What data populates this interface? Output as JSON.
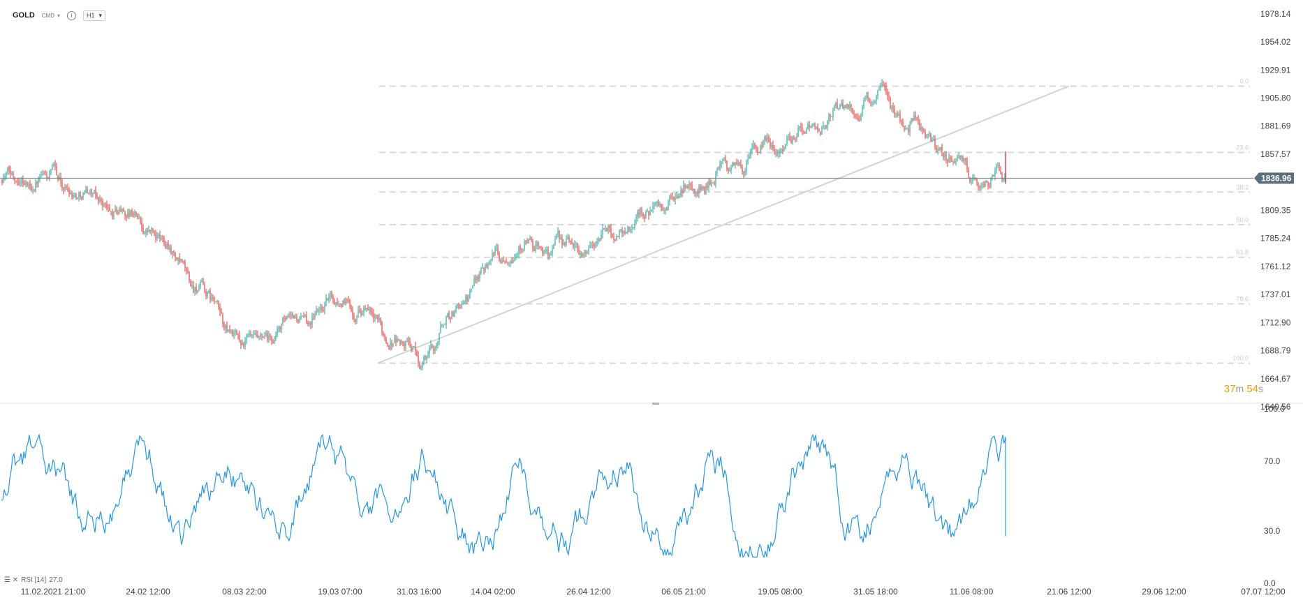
{
  "header": {
    "symbol": "GOLD",
    "venue": "CMD",
    "info_glyph": "i",
    "timeframe": "H1",
    "caret_glyph": "▾"
  },
  "timer": {
    "minutes": "37",
    "minutes_unit": "m",
    "seconds": "54",
    "seconds_unit": "s"
  },
  "rsi_legend": {
    "icons": "☰ ✕",
    "label": "RSI [14]",
    "value": "27.0"
  },
  "colors": {
    "up": "#26a69a",
    "down": "#e53935",
    "rsi": "#2196f3",
    "price_line": "#6b7b8c",
    "price_badge": "#5f6e7d",
    "fib": "#d6d9de",
    "trend": "#cfd4d8",
    "timer": "#f0a000"
  },
  "chart_data": [
    {
      "type": "candlestick",
      "title": "",
      "timeframe": "H1",
      "ylim": [
        1640.56,
        1990
      ],
      "yticks": [
        1978.14,
        1954.02,
        1929.91,
        1905.8,
        1881.69,
        1857.57,
        1809.35,
        1785.24,
        1761.12,
        1737.01,
        1712.9,
        1688.79,
        1664.67,
        1640.56
      ],
      "ytick_labels": [
        "1978.14",
        "1954.02",
        "1929.91",
        "1905.80",
        "1881.69",
        "1857.57",
        "1809.35",
        "1785.24",
        "1761.12",
        "1737.01",
        "1712.90",
        "1688.79",
        "1664.67",
        "1640.56"
      ],
      "last_price": 1836.96,
      "last_price_label": "1836.96",
      "xticks": [
        "11.02.2021 21:00",
        "24.02 12:00",
        "08.03 22:00",
        "19.03 07:00",
        "31.03 16:00",
        "14.04 02:00",
        "26.04 12:00",
        "06.05 21:00",
        "19.05 08:00",
        "31.05 18:00",
        "11.06 08:00",
        "21.06 12:00",
        "29.06 12:00",
        "07.07 12:00"
      ],
      "anchor_points": [
        {
          "x": "11.02.2021 21:00",
          "y": 1836
        },
        {
          "x": "24.02 12:00",
          "y": 1795
        },
        {
          "x": "08.03 22:00",
          "y": 1690
        },
        {
          "x": "19.03 07:00",
          "y": 1735
        },
        {
          "x": "31.03 16:00",
          "y": 1680
        },
        {
          "x": "14.04 02:00",
          "y": 1775
        },
        {
          "x": "26.04 12:00",
          "y": 1780
        },
        {
          "x": "06.05 21:00",
          "y": 1825
        },
        {
          "x": "19.05 08:00",
          "y": 1870
        },
        {
          "x": "31.05 18:00",
          "y": 1908
        },
        {
          "x": "11.06 08:00",
          "y": 1837
        }
      ],
      "fibonacci": [
        {
          "label": "0.0",
          "price": 1916
        },
        {
          "label": "23.6",
          "price": 1859
        },
        {
          "label": "38.2",
          "price": 1825
        },
        {
          "label": "50.0",
          "price": 1797
        },
        {
          "label": "61.8",
          "price": 1769
        },
        {
          "label": "78.6",
          "price": 1729
        },
        {
          "label": "100.0",
          "price": 1678
        }
      ],
      "trendline": [
        {
          "x": "31.03 16:00",
          "y": 1678
        },
        {
          "x": "21.06 12:00",
          "y": 1916
        }
      ]
    },
    {
      "type": "line",
      "name": "RSI [14]",
      "ylim": [
        0,
        100
      ],
      "yticks": [
        100.0,
        70.0,
        30.0,
        0.0
      ],
      "ytick_labels": [
        "100.0",
        "70.0",
        "30.0",
        "0.0"
      ],
      "last_value": 27.0,
      "range": [
        15,
        85
      ]
    }
  ]
}
